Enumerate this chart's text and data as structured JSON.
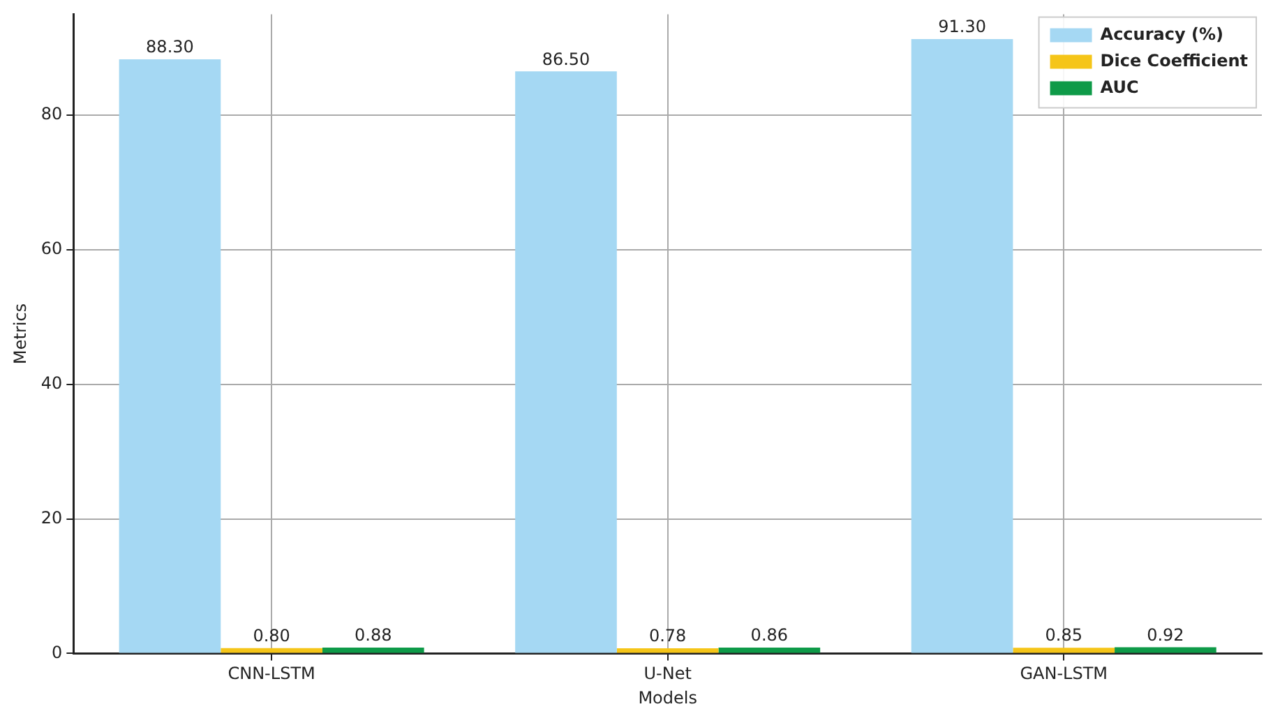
{
  "chart_data": {
    "type": "bar",
    "xlabel": "Models",
    "ylabel": "Metrics",
    "categories": [
      "CNN-LSTM",
      "U-Net",
      "GAN-LSTM"
    ],
    "series": [
      {
        "name": "Accuracy (%)",
        "color": "#a5d8f3",
        "values": [
          88.3,
          86.5,
          91.3
        ],
        "value_labels": [
          "88.30",
          "86.50",
          "91.30"
        ]
      },
      {
        "name": "Dice Coefficient",
        "color": "#f5c518",
        "values": [
          0.8,
          0.78,
          0.85
        ],
        "value_labels": [
          "0.80",
          "0.78",
          "0.85"
        ]
      },
      {
        "name": "AUC",
        "color": "#0e9a48",
        "values": [
          0.88,
          0.86,
          0.92
        ],
        "value_labels": [
          "0.88",
          "0.86",
          "0.92"
        ]
      }
    ],
    "ylim": [
      0,
      95
    ],
    "yticks": [
      0,
      20,
      40,
      60,
      80
    ],
    "grid": true,
    "legend": "top right"
  }
}
